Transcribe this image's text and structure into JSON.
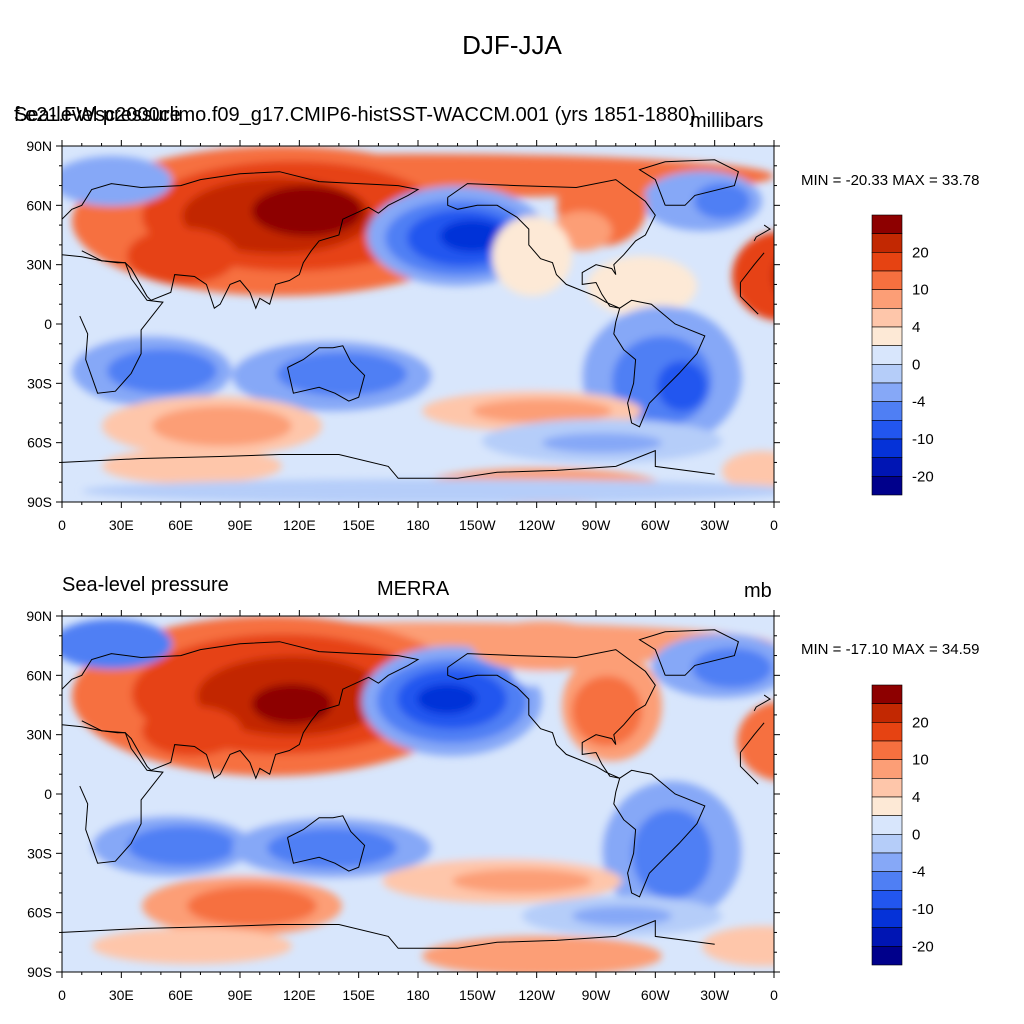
{
  "title": "DJF-JJA",
  "colors": [
    "#00008b",
    "#0015b4",
    "#0532d8",
    "#2256ef",
    "#4f7ff4",
    "#86a8f7",
    "#b5cdf9",
    "#d8e6fc",
    "#fde9d6",
    "#fec6aa",
    "#fc9e76",
    "#f6703f",
    "#e64312",
    "#c22802",
    "#8d0000"
  ],
  "colorbar_labels": [
    "-20",
    "-10",
    "-4",
    "0",
    "4",
    "10",
    "20"
  ],
  "lat_labels": [
    "90N",
    "60N",
    "30N",
    "0",
    "30S",
    "60S",
    "90S"
  ],
  "lon_labels": [
    "0",
    "30E",
    "60E",
    "90E",
    "120E",
    "150E",
    "180",
    "150W",
    "120W",
    "90W",
    "60W",
    "30W",
    "0"
  ],
  "panels": [
    {
      "left_title": "Sea-level pressure",
      "center_title": "f.e21.FWsc2000climo.f09_g17.CMIP6-histSST-WACCM.001 (yrs 1851-1880)",
      "right_title": "millibars",
      "minmax": "MIN = -20.33 MAX =  33.78"
    },
    {
      "left_title": "Sea-level pressure",
      "center_title": "MERRA",
      "right_title": "mb",
      "minmax": "MIN = -17.10 MAX =  34.59"
    }
  ]
}
